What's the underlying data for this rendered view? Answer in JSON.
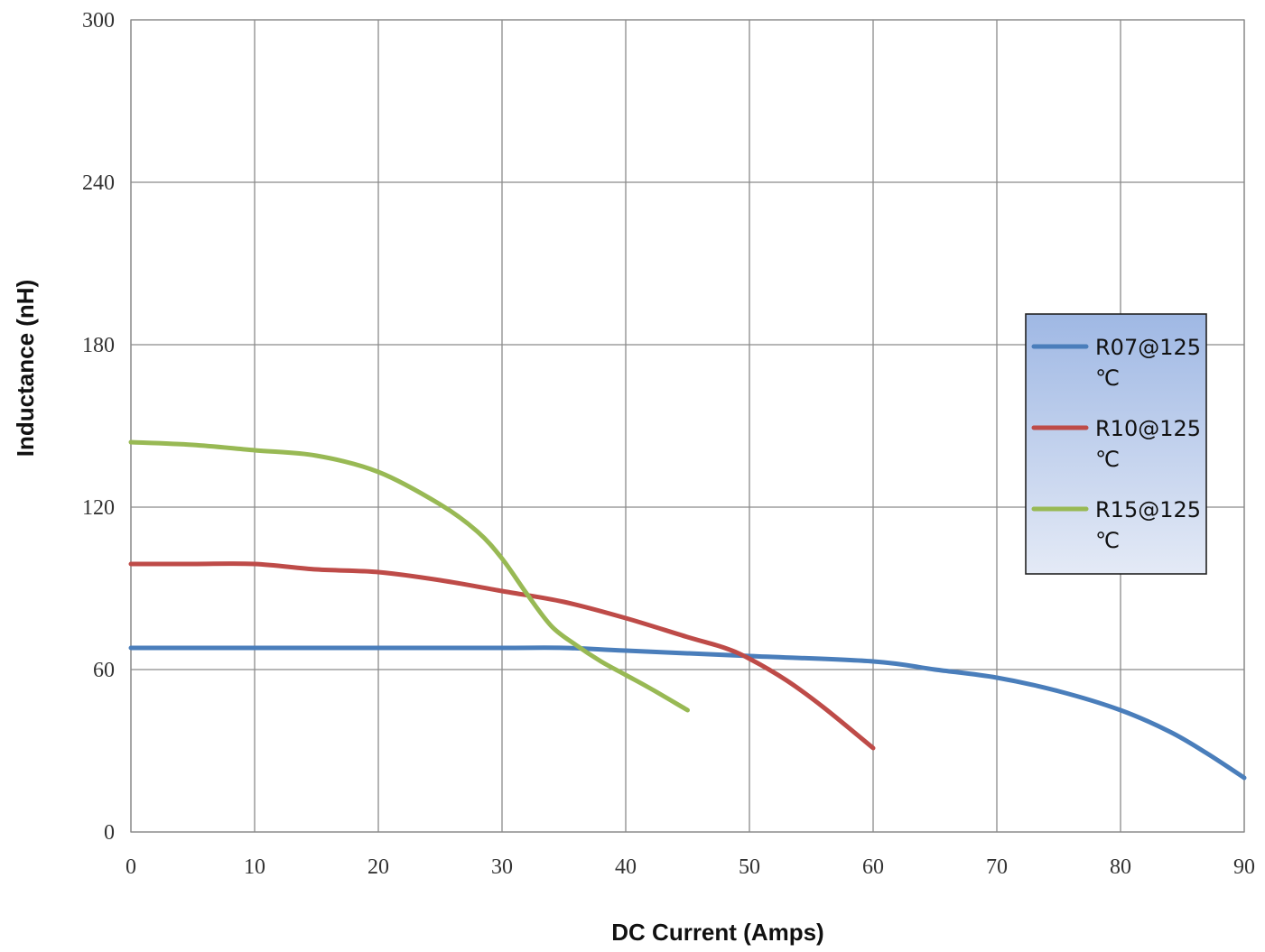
{
  "chart_data": {
    "type": "line",
    "title": "",
    "xlabel": "DC Current (Amps)",
    "ylabel": "Inductance (nH)",
    "xlim": [
      0,
      90
    ],
    "ylim": [
      0,
      300
    ],
    "xticks": [
      0,
      10,
      20,
      30,
      40,
      50,
      60,
      70,
      80,
      90
    ],
    "yticks": [
      0,
      60,
      120,
      180,
      240,
      300
    ],
    "grid": true,
    "legend": {
      "placement": "right",
      "background": "gradient-blue"
    },
    "series": [
      {
        "name": "R07@125 ℃",
        "legend_lines": [
          "R07@125",
          "℃"
        ],
        "color": "#4a7ebb",
        "x": [
          0,
          10,
          20,
          30,
          35,
          40,
          50,
          60,
          65,
          70,
          75,
          80,
          84,
          87,
          90
        ],
        "y": [
          68,
          68,
          68,
          68,
          68,
          67,
          65,
          63,
          60,
          57,
          52,
          45,
          37,
          29,
          20
        ]
      },
      {
        "name": "R10@125 ℃",
        "legend_lines": [
          "R10@125",
          "℃"
        ],
        "color": "#be4b48",
        "x": [
          0,
          5,
          10,
          15,
          20,
          25,
          30,
          35,
          40,
          45,
          48,
          50,
          53,
          56,
          60
        ],
        "y": [
          99,
          99,
          99,
          97,
          96,
          93,
          89,
          85,
          79,
          72,
          68,
          64,
          56,
          46,
          31
        ]
      },
      {
        "name": "R15@125 ℃",
        "legend_lines": [
          "R15@125",
          "℃"
        ],
        "color": "#98b954",
        "x": [
          0,
          5,
          10,
          15,
          20,
          25,
          28,
          30,
          32,
          34,
          36,
          38,
          40,
          42,
          45
        ],
        "y": [
          144,
          143,
          141,
          139,
          133,
          121,
          111,
          101,
          88,
          76,
          69,
          63,
          58,
          53,
          45
        ]
      }
    ]
  }
}
